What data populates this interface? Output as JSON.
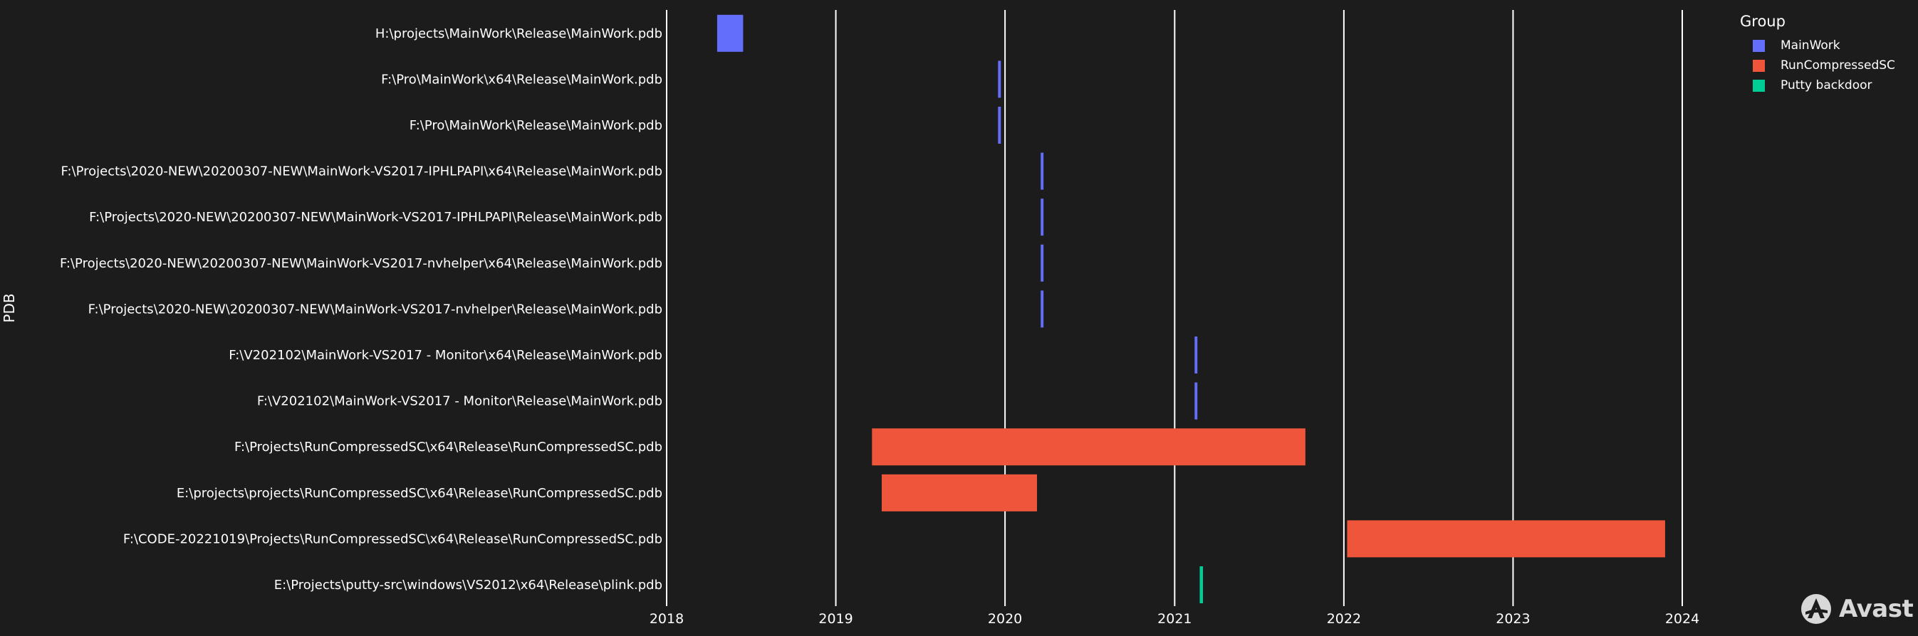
{
  "chart_data": {
    "type": "gantt",
    "ylabel": "PDB",
    "xlabel": "",
    "x_ticks": [
      "2018",
      "2019",
      "2020",
      "2021",
      "2022",
      "2023",
      "2024"
    ],
    "xlim": [
      "2018-01-01",
      "2024-01-01"
    ],
    "grid": true,
    "legend_position": "top-right",
    "legend": {
      "title": "Group",
      "items": [
        {
          "name": "MainWork",
          "color": "#636efa"
        },
        {
          "name": "RunCompressedSC",
          "color": "#ef553b"
        },
        {
          "name": "Putty backdoor",
          "color": "#00cc96"
        }
      ]
    },
    "tasks": [
      {
        "label": "H:\\projects\\MainWork\\Release\\MainWork.pdb",
        "group": "MainWork",
        "start": "2018-04-20",
        "end": "2018-06-15"
      },
      {
        "label": "F:\\Pro\\MainWork\\x64\\Release\\MainWork.pdb",
        "group": "MainWork",
        "start": "2019-12-17",
        "end": "2019-12-23"
      },
      {
        "label": "F:\\Pro\\MainWork\\Release\\MainWork.pdb",
        "group": "MainWork",
        "start": "2019-12-17",
        "end": "2019-12-23"
      },
      {
        "label": "F:\\Projects\\2020-NEW\\20200307-NEW\\MainWork-VS2017-IPHLPAPI\\x64\\Release\\MainWork.pdb",
        "group": "MainWork",
        "start": "2020-03-18",
        "end": "2020-03-24"
      },
      {
        "label": "F:\\Projects\\2020-NEW\\20200307-NEW\\MainWork-VS2017-IPHLPAPI\\Release\\MainWork.pdb",
        "group": "MainWork",
        "start": "2020-03-18",
        "end": "2020-03-24"
      },
      {
        "label": "F:\\Projects\\2020-NEW\\20200307-NEW\\MainWork-VS2017-nvhelper\\x64\\Release\\MainWork.pdb",
        "group": "MainWork",
        "start": "2020-03-18",
        "end": "2020-03-24"
      },
      {
        "label": "F:\\Projects\\2020-NEW\\20200307-NEW\\MainWork-VS2017-nvhelper\\Release\\MainWork.pdb",
        "group": "MainWork",
        "start": "2020-03-18",
        "end": "2020-03-24"
      },
      {
        "label": "F:\\V202102\\MainWork-VS2017 - Monitor\\x64\\Release\\MainWork.pdb",
        "group": "MainWork",
        "start": "2021-02-13",
        "end": "2021-02-19"
      },
      {
        "label": "F:\\V202102\\MainWork-VS2017 - Monitor\\Release\\MainWork.pdb",
        "group": "MainWork",
        "start": "2021-02-13",
        "end": "2021-02-19"
      },
      {
        "label": "F:\\Projects\\RunCompressedSC\\x64\\Release\\RunCompressedSC.pdb",
        "group": "RunCompressedSC",
        "start": "2019-03-20",
        "end": "2021-10-10"
      },
      {
        "label": "E:\\projects\\projects\\RunCompressedSC\\x64\\Release\\RunCompressedSC.pdb",
        "group": "RunCompressedSC",
        "start": "2019-04-10",
        "end": "2020-03-10"
      },
      {
        "label": "F:\\CODE-20221019\\Projects\\RunCompressedSC\\x64\\Release\\RunCompressedSC.pdb",
        "group": "RunCompressedSC",
        "start": "2022-01-08",
        "end": "2023-11-25"
      },
      {
        "label": "E:\\Projects\\putty-src\\windows\\VS2012\\x64\\Release\\plink.pdb",
        "group": "Putty backdoor",
        "start": "2021-02-24",
        "end": "2021-03-03"
      }
    ]
  },
  "watermark": {
    "brand": "Avast"
  }
}
